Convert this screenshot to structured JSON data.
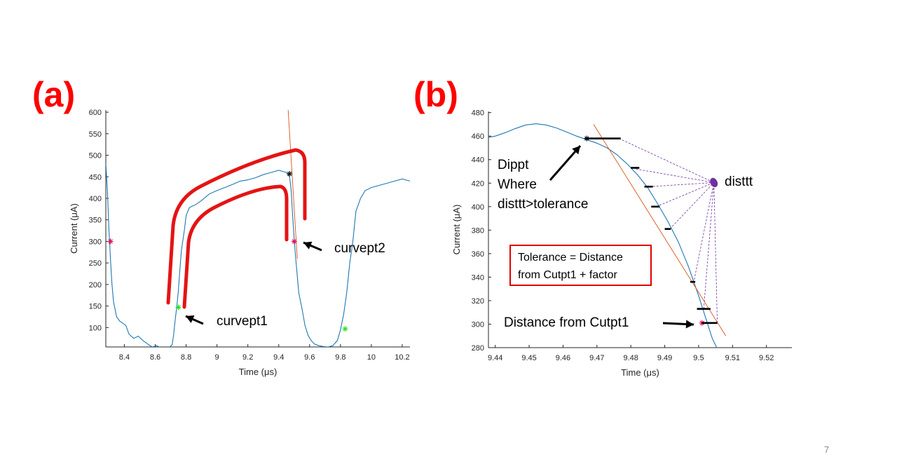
{
  "slide": {
    "page_number": "7"
  },
  "panels": {
    "a": {
      "label": "(a)"
    },
    "b": {
      "label": "(b)"
    }
  },
  "annotations": {
    "curvept2": "curvept2",
    "curvept1": "curvept1",
    "dippt_lines": [
      "Dippt",
      "Where",
      "disttt>tolerance"
    ],
    "disttt": "disttt",
    "tolerance_lines": [
      "Tolerance = Distance",
      "from Cutpt1 + factor"
    ],
    "distance_from_cutpt1": "Distance from Cutpt1"
  },
  "colors": {
    "panel_label": "#ff0000",
    "signal": "#1f77b4",
    "tangent": "#d95319",
    "bracket": "#e41414",
    "distance_lines": "#7030a0",
    "marker_red": "#e4004e",
    "marker_green": "#22e022",
    "marker_black": "#000000"
  },
  "chart_data": [
    {
      "type": "line",
      "id": "a",
      "xlabel": "Time (μs)",
      "ylabel": "Current (μA)",
      "xlim": [
        8.28,
        10.25
      ],
      "ylim": [
        55,
        605
      ],
      "xticks": [
        8.4,
        8.6,
        8.8,
        9,
        9.2,
        9.4,
        9.6,
        9.8,
        10,
        10.2
      ],
      "xticklabels": [
        "8.4",
        "8.6",
        "8.8",
        "9",
        "9.2",
        "9.4",
        "9.6",
        "9.8",
        "10",
        "10.2"
      ],
      "yticks": [
        100,
        150,
        200,
        250,
        300,
        350,
        400,
        450,
        500,
        550,
        600
      ],
      "yticklabels": [
        "100",
        "150",
        "200",
        "250",
        "300",
        "350",
        "400",
        "450",
        "500",
        "550",
        "600"
      ],
      "series": [
        {
          "kind": "signal",
          "x": [
            8.28,
            8.29,
            8.3,
            8.31,
            8.32,
            8.33,
            8.35,
            8.37,
            8.39,
            8.41,
            8.43,
            8.46,
            8.49,
            8.52,
            8.55,
            8.58,
            8.61,
            8.64,
            8.67,
            8.69,
            8.71,
            8.72,
            8.73,
            8.74,
            8.75,
            8.76,
            8.77,
            8.78,
            8.79,
            8.8,
            8.82,
            8.84,
            8.86,
            8.9,
            8.95,
            9.0,
            9.05,
            9.1,
            9.15,
            9.2,
            9.25,
            9.3,
            9.35,
            9.4,
            9.43,
            9.45,
            9.47,
            9.48,
            9.49,
            9.5,
            9.51,
            9.52,
            9.53,
            9.55,
            9.57,
            9.59,
            9.61,
            9.63,
            9.66,
            9.69,
            9.72,
            9.75,
            9.78,
            9.8,
            9.82,
            9.84,
            9.86,
            9.88,
            9.9,
            9.93,
            9.96,
            10.0,
            10.05,
            10.1,
            10.15,
            10.2,
            10.25
          ],
          "y": [
            480,
            420,
            330,
            260,
            200,
            160,
            125,
            115,
            110,
            105,
            85,
            75,
            80,
            70,
            62,
            55,
            58,
            52,
            50,
            54,
            60,
            85,
            120,
            148,
            185,
            235,
            280,
            305,
            330,
            360,
            378,
            382,
            385,
            395,
            410,
            418,
            425,
            432,
            440,
            443,
            448,
            455,
            460,
            465,
            462,
            460,
            450,
            420,
            360,
            305,
            260,
            220,
            180,
            145,
            105,
            82,
            70,
            62,
            58,
            56,
            55,
            58,
            70,
            95,
            130,
            180,
            250,
            300,
            370,
            400,
            418,
            425,
            430,
            435,
            440,
            445,
            440
          ]
        },
        {
          "kind": "tangent",
          "x": [
            9.46,
            9.52
          ],
          "y": [
            610,
            260
          ]
        }
      ],
      "markers": [
        {
          "x": 8.31,
          "y": 300,
          "color": "marker_red"
        },
        {
          "x": 8.75,
          "y": 147,
          "color": "marker_green"
        },
        {
          "x": 9.47,
          "y": 457,
          "color": "marker_black"
        },
        {
          "x": 9.5,
          "y": 300,
          "color": "marker_red"
        },
        {
          "x": 9.83,
          "y": 97,
          "color": "marker_green"
        }
      ]
    },
    {
      "type": "line",
      "id": "b",
      "xlabel": "Time (μs)",
      "ylabel": "Current (μA)",
      "xlim": [
        9.438,
        9.5275
      ],
      "ylim": [
        280,
        481
      ],
      "xticks": [
        9.44,
        9.45,
        9.46,
        9.47,
        9.48,
        9.49,
        9.5,
        9.51,
        9.52
      ],
      "xticklabels": [
        "9.44",
        "9.45",
        "9.46",
        "9.47",
        "9.48",
        "9.49",
        "9.5",
        "9.51",
        "9.52"
      ],
      "yticks": [
        280,
        300,
        320,
        340,
        360,
        380,
        400,
        420,
        440,
        460,
        480
      ],
      "yticklabels": [
        "280",
        "300",
        "320",
        "340",
        "360",
        "380",
        "400",
        "420",
        "440",
        "460",
        "480"
      ],
      "series": [
        {
          "kind": "signal",
          "x": [
            9.438,
            9.44,
            9.443,
            9.446,
            9.449,
            9.452,
            9.455,
            9.458,
            9.461,
            9.464,
            9.467,
            9.47,
            9.473,
            9.476,
            9.479,
            9.482,
            9.485,
            9.488,
            9.491,
            9.494,
            9.497,
            9.5,
            9.502,
            9.504,
            9.506
          ],
          "y": [
            459,
            460,
            463,
            466.5,
            469.5,
            470.5,
            469.5,
            467,
            463.5,
            460,
            457,
            454,
            450,
            444,
            436,
            427,
            416,
            402,
            387,
            370,
            349,
            324,
            306,
            288,
            276
          ]
        },
        {
          "kind": "tangent",
          "x": [
            9.469,
            9.508
          ],
          "y": [
            470,
            290
          ]
        }
      ],
      "markers": [
        {
          "x": 9.467,
          "y": 458,
          "color": "marker_black"
        },
        {
          "x": 9.501,
          "y": 301,
          "color": "marker_red"
        }
      ],
      "disttt_point": {
        "x": 9.5045,
        "y": 420.5
      },
      "distance_lines_from": [
        {
          "x": 9.4765,
          "y": 458
        },
        {
          "x": 9.4815,
          "y": 432
        },
        {
          "x": 9.4855,
          "y": 417
        },
        {
          "x": 9.4875,
          "y": 400
        },
        {
          "x": 9.4915,
          "y": 381
        },
        {
          "x": 9.4985,
          "y": 335
        },
        {
          "x": 9.5015,
          "y": 313
        },
        {
          "x": 9.5055,
          "y": 301
        }
      ],
      "horizontal_segments": [
        {
          "x0": 9.4665,
          "x1": 9.477,
          "y": 458
        },
        {
          "x0": 9.48,
          "x1": 9.4825,
          "y": 433
        },
        {
          "x0": 9.484,
          "x1": 9.4865,
          "y": 417
        },
        {
          "x0": 9.486,
          "x1": 9.4885,
          "y": 400
        },
        {
          "x0": 9.49,
          "x1": 9.4918,
          "y": 381
        },
        {
          "x0": 9.4975,
          "x1": 9.499,
          "y": 336
        },
        {
          "x0": 9.4995,
          "x1": 9.5035,
          "y": 313
        },
        {
          "x0": 9.501,
          "x1": 9.5055,
          "y": 301
        }
      ]
    }
  ]
}
